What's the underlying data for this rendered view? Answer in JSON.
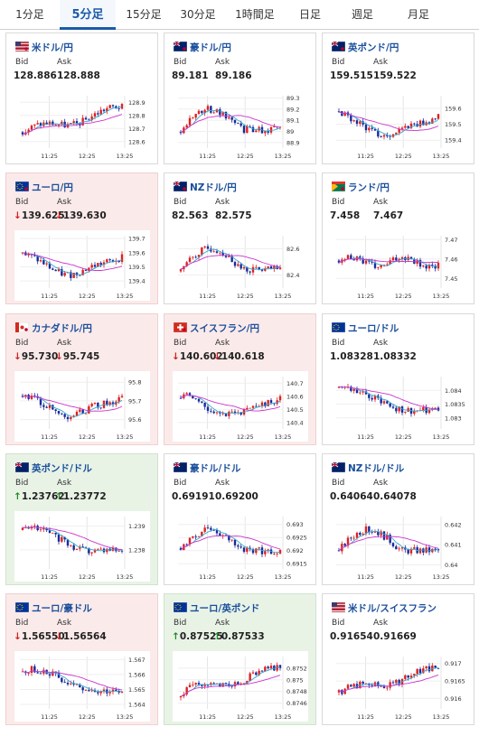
{
  "tabs": [
    {
      "label": "1分足",
      "active": false
    },
    {
      "label": "5分足",
      "active": true
    },
    {
      "label": "15分足",
      "active": false
    },
    {
      "label": "30分足",
      "active": false
    },
    {
      "label": "1時間足",
      "active": false
    },
    {
      "label": "日足",
      "active": false
    },
    {
      "label": "週足",
      "active": false
    },
    {
      "label": "月足",
      "active": false
    }
  ],
  "labels": {
    "bid": "Bid",
    "ask": "Ask",
    "arrow_down": "↓",
    "arrow_up": "↑"
  },
  "colors": {
    "up_candle": "#e02020",
    "down_candle": "#1a2a9a",
    "ma_line": "#cc33cc",
    "short_ma": "#33aacc"
  },
  "cards": [
    {
      "pair": "米ドル/円",
      "flag": "flag-us-jp",
      "trend": "none",
      "bid": "128.886",
      "ask": "128.888",
      "chart_data": {
        "type": "candlestick",
        "x_ticks": [
          "11:25",
          "12:25",
          "13:25"
        ],
        "y_ticks": [
          "128.9",
          "128.8",
          "128.7",
          "128.6"
        ],
        "ylim": [
          128.55,
          128.95
        ],
        "trend_shape": "rise"
      }
    },
    {
      "pair": "豪ドル/円",
      "flag": "flag-au-jp",
      "trend": "none",
      "bid": "89.181",
      "ask": "89.186",
      "chart_data": {
        "type": "candlestick",
        "x_ticks": [
          "11:25",
          "12:25",
          "13:25"
        ],
        "y_ticks": [
          "89.3",
          "89.2",
          "89.1",
          "89",
          "88.9"
        ],
        "ylim": [
          88.85,
          89.32
        ],
        "trend_shape": "hump"
      }
    },
    {
      "pair": "英ポンド/円",
      "flag": "flag-gb-jp",
      "trend": "none",
      "bid": "159.515",
      "ask": "159.522",
      "chart_data": {
        "type": "candlestick",
        "x_ticks": [
          "11:25",
          "12:25",
          "13:25"
        ],
        "y_ticks": [
          "159.6",
          "159.5",
          "159.4"
        ],
        "ylim": [
          159.35,
          159.68
        ],
        "trend_shape": "dip"
      }
    },
    {
      "pair": "ユーロ/円",
      "flag": "flag-eu-jp",
      "trend": "down",
      "bid": "139.625",
      "ask": "139.630",
      "chart_data": {
        "type": "candlestick",
        "x_ticks": [
          "11:25",
          "12:25",
          "13:25"
        ],
        "y_ticks": [
          "139.7",
          "139.6",
          "139.5",
          "139.4"
        ],
        "ylim": [
          139.35,
          139.72
        ],
        "trend_shape": "dip"
      }
    },
    {
      "pair": "NZドル/円",
      "flag": "flag-nz-jp",
      "trend": "none",
      "bid": "82.563",
      "ask": "82.575",
      "chart_data": {
        "type": "candlestick",
        "x_ticks": [
          "11:25",
          "12:25",
          "13:25"
        ],
        "y_ticks": [
          "82.6",
          "82.4"
        ],
        "ylim": [
          82.3,
          82.7
        ],
        "trend_shape": "hump"
      }
    },
    {
      "pair": "ランド/円",
      "flag": "flag-za-jp",
      "trend": "none",
      "bid": "7.458",
      "ask": "7.467",
      "chart_data": {
        "type": "candlestick",
        "x_ticks": [
          "11:25",
          "12:25",
          "13:25"
        ],
        "y_ticks": [
          "7.47",
          "7.46",
          "7.45"
        ],
        "ylim": [
          7.445,
          7.472
        ],
        "trend_shape": "flat"
      }
    },
    {
      "pair": "カナダドル/円",
      "flag": "flag-ca-jp",
      "trend": "down",
      "bid": "95.730",
      "ask": "95.745",
      "chart_data": {
        "type": "candlestick",
        "x_ticks": [
          "11:25",
          "12:25",
          "13:25"
        ],
        "y_ticks": [
          "95.8",
          "95.7",
          "95.6"
        ],
        "ylim": [
          95.55,
          95.83
        ],
        "trend_shape": "dip"
      }
    },
    {
      "pair": "スイスフラン/円",
      "flag": "flag-ch-jp",
      "trend": "down",
      "bid": "140.602",
      "ask": "140.618",
      "chart_data": {
        "type": "candlestick",
        "x_ticks": [
          "11:25",
          "12:25",
          "13:25"
        ],
        "y_ticks": [
          "140.7",
          "140.6",
          "140.5",
          "140.4"
        ],
        "ylim": [
          140.35,
          140.75
        ],
        "trend_shape": "dip"
      }
    },
    {
      "pair": "ユーロ/ドル",
      "flag": "flag-eu-us",
      "trend": "none",
      "bid": "1.08328",
      "ask": "1.08332",
      "chart_data": {
        "type": "candlestick",
        "x_ticks": [
          "11:25",
          "12:25",
          "13:25"
        ],
        "y_ticks": [
          "1.084",
          "1.0835",
          "1.083"
        ],
        "ylim": [
          1.0826,
          1.0845
        ],
        "trend_shape": "fall"
      }
    },
    {
      "pair": "英ポンド/ドル",
      "flag": "flag-gb-us",
      "trend": "up",
      "bid": "1.23762",
      "ask": "1.23772",
      "chart_data": {
        "type": "candlestick",
        "x_ticks": [
          "11:25",
          "12:25",
          "13:25"
        ],
        "y_ticks": [
          "1.239",
          "1.238"
        ],
        "ylim": [
          1.2372,
          1.2394
        ],
        "trend_shape": "fall"
      }
    },
    {
      "pair": "豪ドル/ドル",
      "flag": "flag-au-us",
      "trend": "none",
      "bid": "0.69191",
      "ask": "0.69200",
      "chart_data": {
        "type": "candlestick",
        "x_ticks": [
          "11:25",
          "12:25",
          "13:25"
        ],
        "y_ticks": [
          "0.693",
          "0.6925",
          "0.692",
          "0.6915"
        ],
        "ylim": [
          0.6913,
          0.6933
        ],
        "trend_shape": "hump"
      }
    },
    {
      "pair": "NZドル/ドル",
      "flag": "flag-nz-us",
      "trend": "none",
      "bid": "0.64064",
      "ask": "0.64078",
      "chart_data": {
        "type": "candlestick",
        "x_ticks": [
          "11:25",
          "12:25",
          "13:25"
        ],
        "y_ticks": [
          "0.642",
          "0.641",
          "0.64"
        ],
        "ylim": [
          0.6398,
          0.6424
        ],
        "trend_shape": "hump"
      }
    },
    {
      "pair": "ユーロ/豪ドル",
      "flag": "flag-eu-au",
      "trend": "down",
      "bid": "1.56550",
      "ask": "1.56564",
      "chart_data": {
        "type": "candlestick",
        "x_ticks": [
          "11:25",
          "12:25",
          "13:25"
        ],
        "y_ticks": [
          "1.567",
          "1.566",
          "1.565",
          "1.564"
        ],
        "ylim": [
          1.5637,
          1.5672
        ],
        "trend_shape": "fall"
      }
    },
    {
      "pair": "ユーロ/英ポンド",
      "flag": "flag-eu-gb",
      "trend": "up",
      "bid": "0.87525",
      "ask": "0.87533",
      "chart_data": {
        "type": "candlestick",
        "x_ticks": [
          "11:25",
          "12:25",
          "13:25"
        ],
        "y_ticks": [
          "0.8752",
          "0.875",
          "0.8748",
          "0.8746"
        ],
        "ylim": [
          0.8745,
          0.8754
        ],
        "trend_shape": "rise"
      }
    },
    {
      "pair": "米ドル/スイスフラン",
      "flag": "flag-us-ch",
      "trend": "none",
      "bid": "0.91654",
      "ask": "0.91669",
      "chart_data": {
        "type": "candlestick",
        "x_ticks": [
          "11:25",
          "12:25",
          "13:25"
        ],
        "y_ticks": [
          "0.917",
          "0.9165",
          "0.916"
        ],
        "ylim": [
          0.9157,
          0.9172
        ],
        "trend_shape": "rise"
      }
    }
  ]
}
